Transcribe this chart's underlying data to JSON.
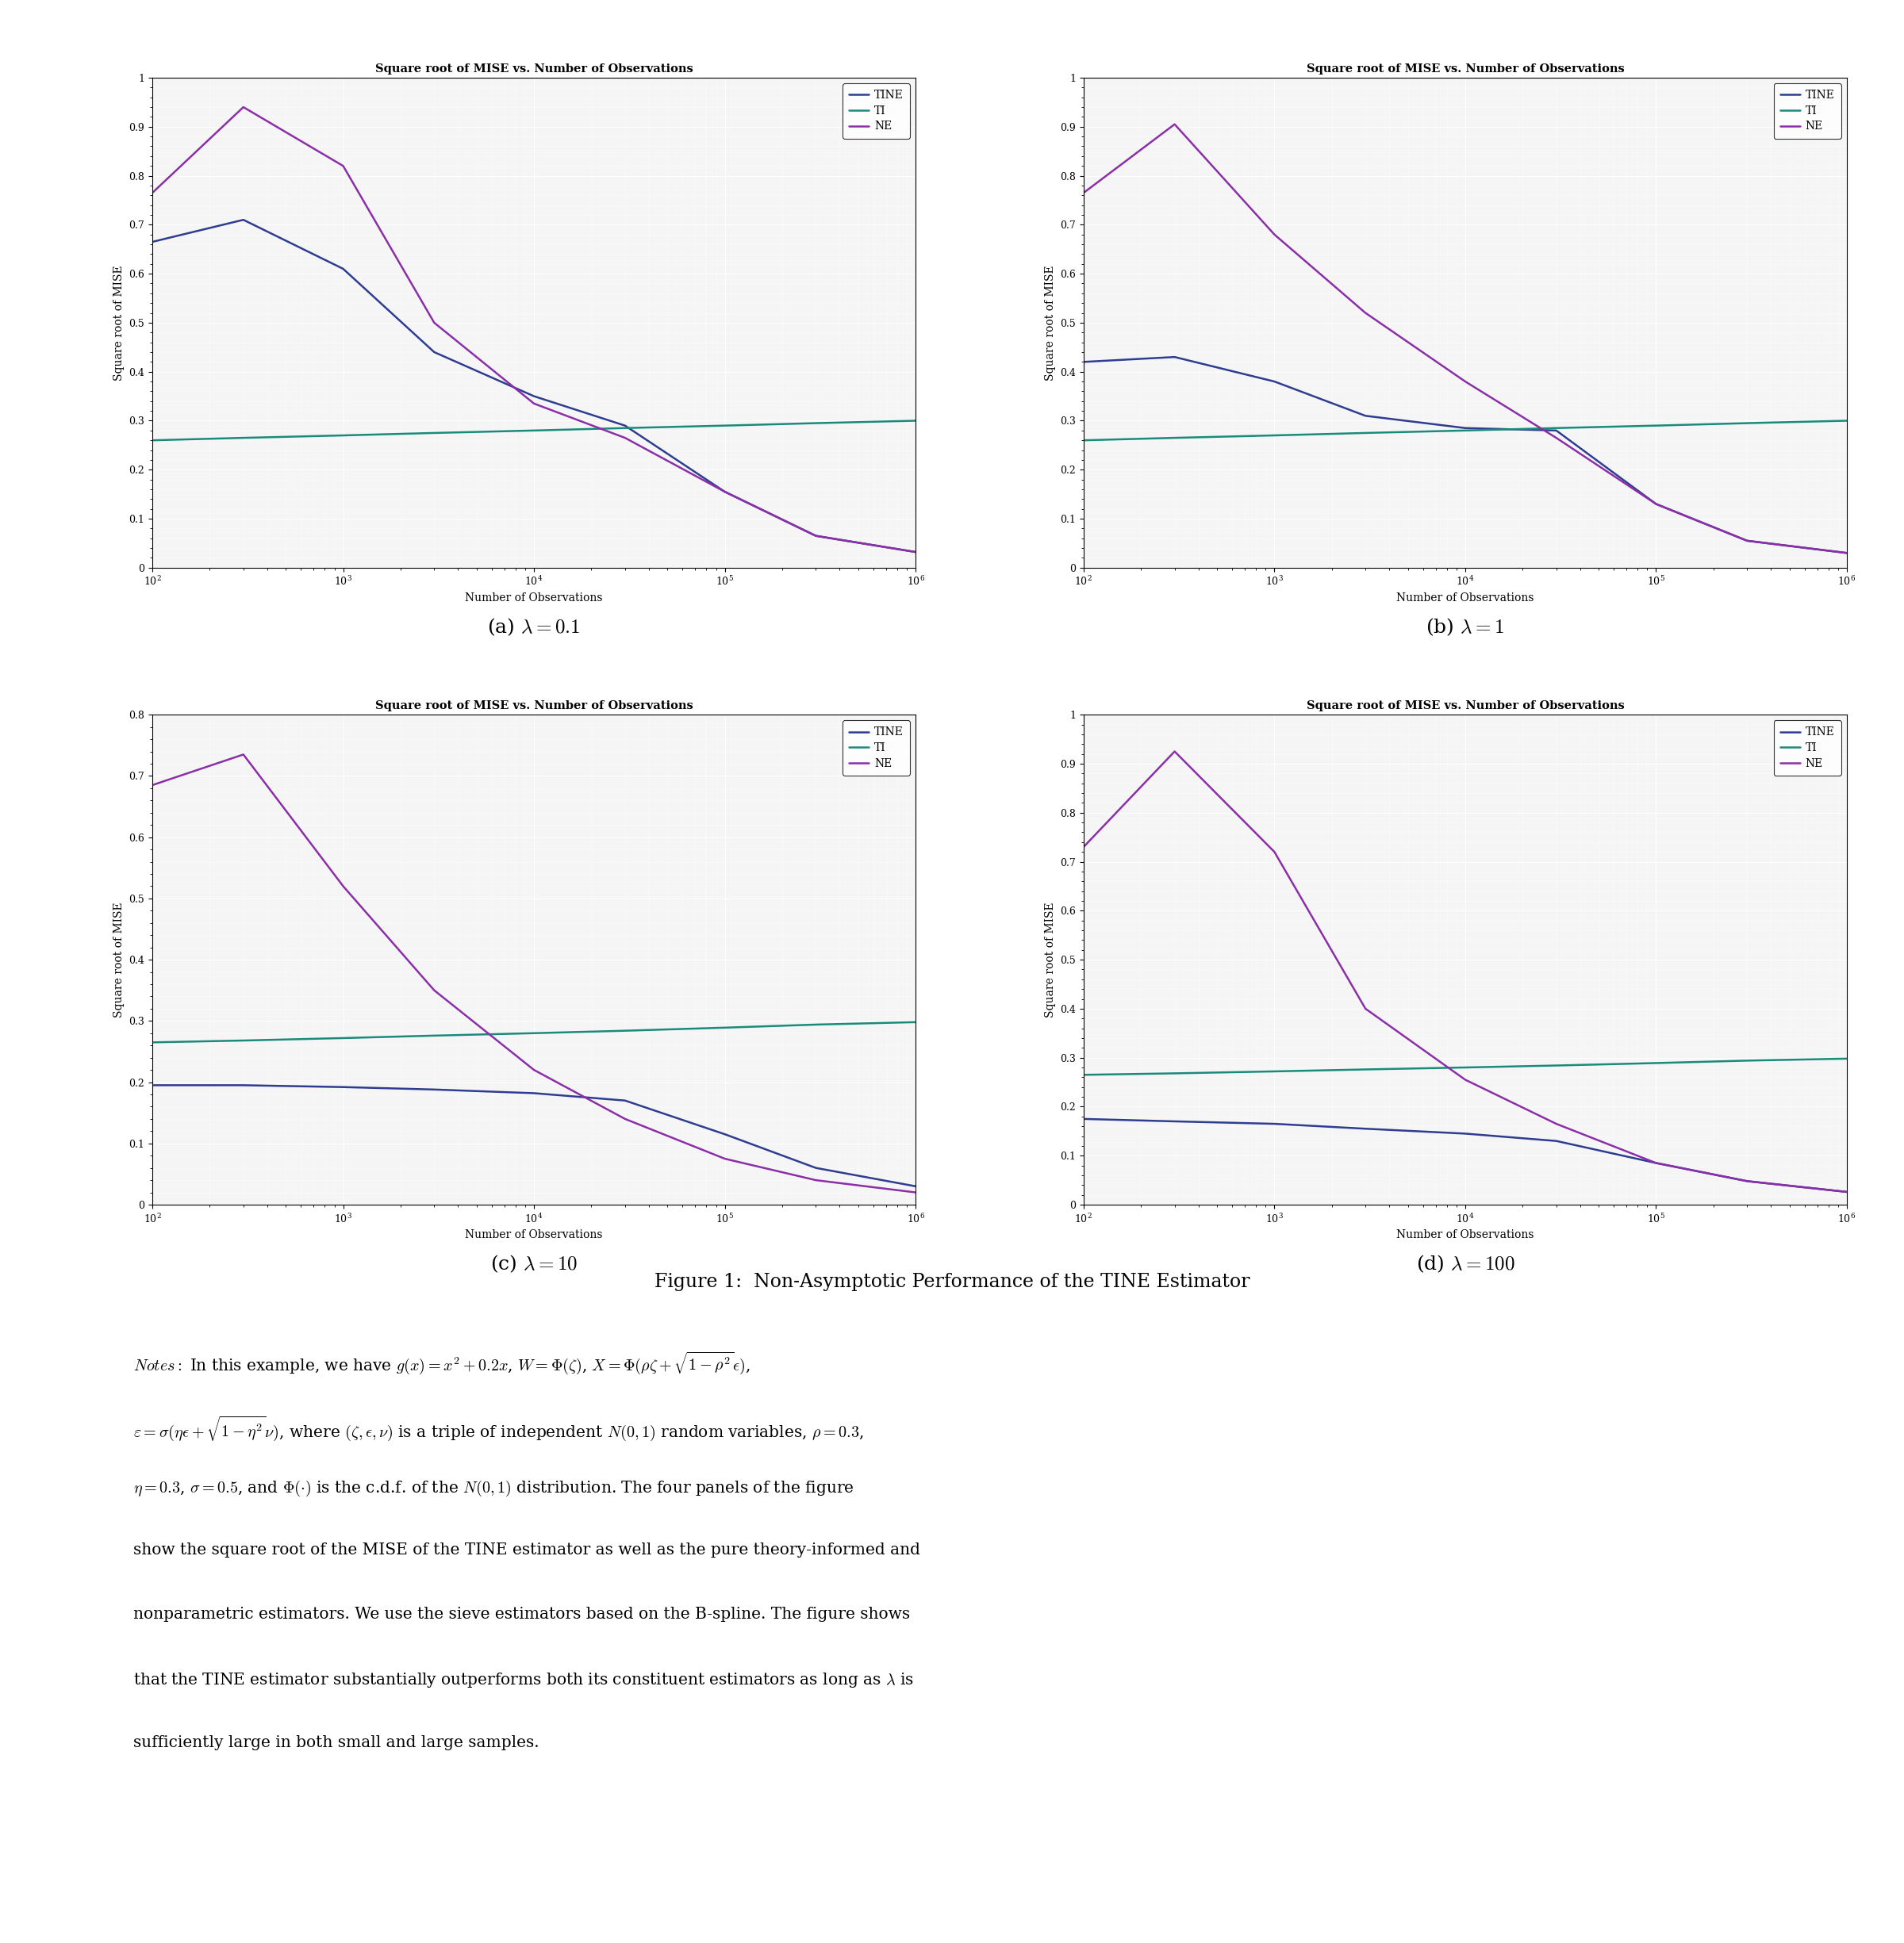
{
  "title": "Square root of MISE vs. Number of Observations",
  "xlabel": "Number of Observations",
  "ylabel": "Square root of MISE",
  "x_values": [
    100,
    300,
    1000,
    3000,
    10000,
    30000,
    100000,
    300000,
    1000000
  ],
  "panels": [
    {
      "lambda_label": "(a) $\\lambda = 0.1$",
      "ylim": [
        0,
        1.0
      ],
      "yticks": [
        0,
        0.1,
        0.2,
        0.3,
        0.4,
        0.5,
        0.6,
        0.7,
        0.8,
        0.9,
        1.0
      ],
      "TINE": [
        0.665,
        0.71,
        0.61,
        0.44,
        0.35,
        0.29,
        0.155,
        0.065,
        0.032
      ],
      "TI": [
        0.26,
        0.265,
        0.27,
        0.275,
        0.28,
        0.285,
        0.29,
        0.295,
        0.3
      ],
      "NE": [
        0.765,
        0.94,
        0.82,
        0.5,
        0.335,
        0.265,
        0.155,
        0.065,
        0.032
      ]
    },
    {
      "lambda_label": "(b) $\\lambda = 1$",
      "ylim": [
        0,
        1.0
      ],
      "yticks": [
        0,
        0.1,
        0.2,
        0.3,
        0.4,
        0.5,
        0.6,
        0.7,
        0.8,
        0.9,
        1.0
      ],
      "TINE": [
        0.42,
        0.43,
        0.38,
        0.31,
        0.285,
        0.28,
        0.13,
        0.055,
        0.03
      ],
      "TI": [
        0.26,
        0.265,
        0.27,
        0.275,
        0.28,
        0.285,
        0.29,
        0.295,
        0.3
      ],
      "NE": [
        0.765,
        0.905,
        0.68,
        0.52,
        0.38,
        0.265,
        0.13,
        0.055,
        0.03
      ]
    },
    {
      "lambda_label": "(c) $\\lambda = 10$",
      "ylim": [
        0,
        0.8
      ],
      "yticks": [
        0,
        0.1,
        0.2,
        0.3,
        0.4,
        0.5,
        0.6,
        0.7,
        0.8
      ],
      "TINE": [
        0.195,
        0.195,
        0.192,
        0.188,
        0.182,
        0.17,
        0.115,
        0.06,
        0.03
      ],
      "TI": [
        0.265,
        0.268,
        0.272,
        0.276,
        0.28,
        0.284,
        0.289,
        0.294,
        0.298
      ],
      "NE": [
        0.685,
        0.735,
        0.52,
        0.35,
        0.22,
        0.14,
        0.075,
        0.04,
        0.02
      ]
    },
    {
      "lambda_label": "(d) $\\lambda = 100$",
      "ylim": [
        0,
        1.0
      ],
      "yticks": [
        0,
        0.1,
        0.2,
        0.3,
        0.4,
        0.5,
        0.6,
        0.7,
        0.8,
        0.9,
        1.0
      ],
      "TINE": [
        0.175,
        0.17,
        0.165,
        0.155,
        0.145,
        0.13,
        0.085,
        0.048,
        0.026
      ],
      "TI": [
        0.265,
        0.268,
        0.272,
        0.276,
        0.28,
        0.284,
        0.289,
        0.294,
        0.298
      ],
      "NE": [
        0.73,
        0.925,
        0.72,
        0.4,
        0.255,
        0.165,
        0.085,
        0.048,
        0.026
      ]
    }
  ],
  "colors": {
    "TINE": "#2e3d8f",
    "TI": "#1a8a7a",
    "NE": "#8b2fa8"
  },
  "figure_caption": "Figure 1:  Non-Asymptotic Performance of the TINE Estimator",
  "bg_color": "#f5f5f5"
}
